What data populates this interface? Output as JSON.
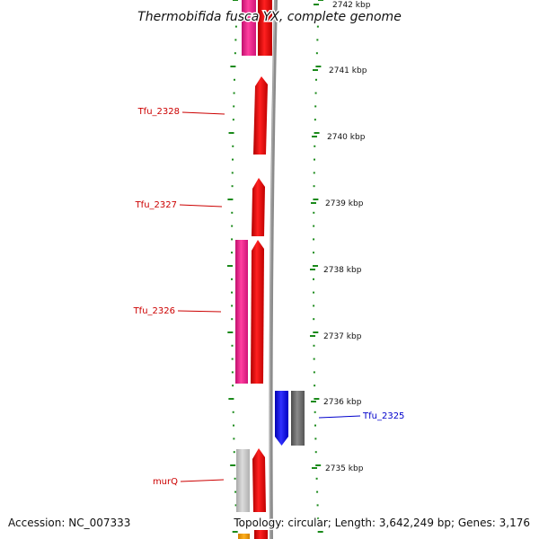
{
  "title": "Thermobifida fusca YX, complete genome",
  "footer": {
    "accession": "Accession: NC_007333",
    "topology": "Topology: circular; Length: 3,642,249 bp; Genes: 3,176"
  },
  "colors": {
    "forward_cds": "#ff0000",
    "reverse_cds": "#1e1ef0",
    "forward_orf": "#ff1493",
    "reverse_orf": "#6e6e6e",
    "other": "#c8c8c8",
    "tick": "#1a8a1a",
    "backbone": "#8c8c8c",
    "forward_label": "#cc0000",
    "reverse_label": "#0000cc"
  },
  "ticks": [
    {
      "label": "2742 kbp"
    },
    {
      "label": "2741 kbp"
    },
    {
      "label": "2740 kbp"
    },
    {
      "label": "2739 kbp"
    },
    {
      "label": "2738 kbp"
    },
    {
      "label": "2737 kbp"
    },
    {
      "label": "2736 kbp"
    },
    {
      "label": "2735 kbp"
    }
  ],
  "gene_labels": [
    {
      "name": "Tfu_2328",
      "strand": "forward"
    },
    {
      "name": "Tfu_2327",
      "strand": "forward"
    },
    {
      "name": "Tfu_2326",
      "strand": "forward"
    },
    {
      "name": "Tfu_2325",
      "strand": "reverse"
    },
    {
      "name": "murQ",
      "strand": "forward"
    }
  ]
}
